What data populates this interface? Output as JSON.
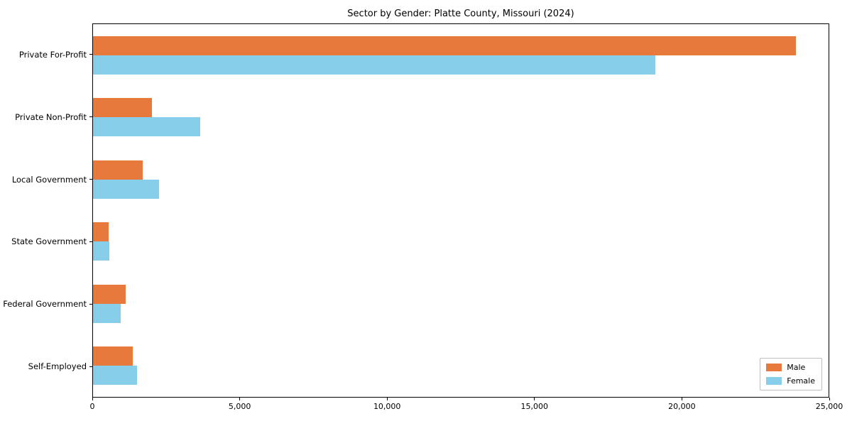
{
  "title": "Sector by Gender: Platte County, Missouri (2024)",
  "chart_data": {
    "type": "bar",
    "orientation": "horizontal",
    "title": "Sector by Gender: Platte County, Missouri (2024)",
    "categories": [
      "Private For-Profit",
      "Private Non-Profit",
      "Local Government",
      "State Government",
      "Federal Government",
      "Self-Employed"
    ],
    "series": [
      {
        "name": "Male",
        "color": "#E8793D",
        "values": [
          23900,
          2000,
          1700,
          520,
          1100,
          1350
        ]
      },
      {
        "name": "Female",
        "color": "#87CEEB",
        "values": [
          19100,
          3650,
          2250,
          550,
          950,
          1500
        ]
      }
    ],
    "xlabel": "",
    "ylabel": "",
    "xlim": [
      0,
      25000
    ],
    "xticks": [
      {
        "value": 0,
        "label": "0"
      },
      {
        "value": 5000,
        "label": "5,000"
      },
      {
        "value": 10000,
        "label": "10,000"
      },
      {
        "value": 15000,
        "label": "15,000"
      },
      {
        "value": 20000,
        "label": "20,000"
      },
      {
        "value": 25000,
        "label": "25,000"
      }
    ],
    "grid": false,
    "legend": {
      "position": "lower right",
      "entries": [
        "Male",
        "Female"
      ]
    }
  }
}
